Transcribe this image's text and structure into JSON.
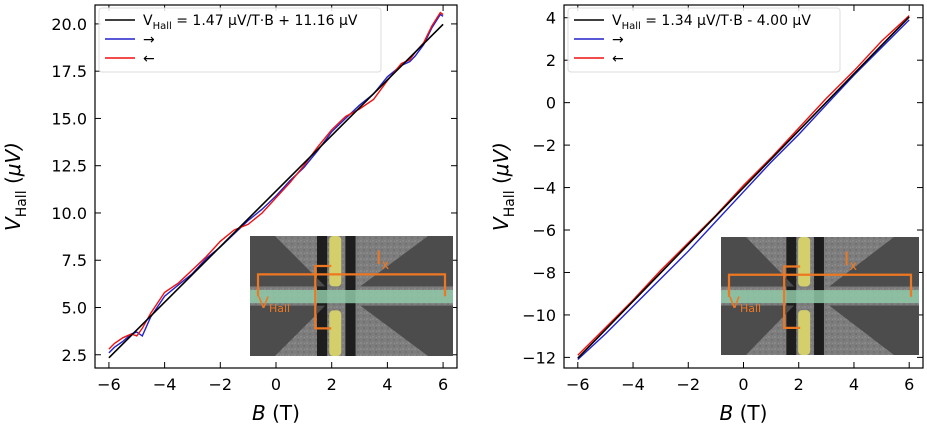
{
  "chart_data": [
    {
      "type": "line",
      "xlabel": "B (T)",
      "ylabel": "V_Hall (μV)",
      "xlim": [
        -6.5,
        6.5
      ],
      "ylim": [
        1.8,
        21.0
      ],
      "xticks": [
        -6,
        -4,
        -2,
        0,
        2,
        4,
        6
      ],
      "yticks": [
        2.5,
        5.0,
        7.5,
        10.0,
        12.5,
        15.0,
        17.5,
        20.0
      ],
      "ytick_labels": [
        "2.5",
        "5.0",
        "7.5",
        "10.0",
        "12.5",
        "15.0",
        "17.5",
        "20.0"
      ],
      "legend_position": "top-left",
      "fit": {
        "slope": 1.47,
        "intercept": 11.16
      },
      "legend": [
        {
          "label": "V_Hall = 1.47 μV/T·B + 11.16 μV",
          "color": "#000000"
        },
        {
          "label": "→",
          "color": "#2222cc"
        },
        {
          "label": "←",
          "color": "#ee1111"
        }
      ],
      "series": [
        {
          "name": "V_Hall = 1.47 μV/T·B + 11.16 μV",
          "color": "#000000",
          "x": [
            -6,
            6
          ],
          "y": [
            2.34,
            19.98
          ]
        },
        {
          "name": "→",
          "color": "#2222cc",
          "x": [
            -6,
            -5.8,
            -5.5,
            -5.2,
            -5.0,
            -4.8,
            -4.5,
            -4.0,
            -3.5,
            -3.0,
            -2.5,
            -2.0,
            -1.5,
            -1.0,
            -0.5,
            0,
            0.5,
            1.0,
            1.5,
            2.0,
            2.5,
            3.0,
            3.5,
            4.0,
            4.5,
            4.8,
            5.0,
            5.3,
            5.6,
            5.9,
            6.0
          ],
          "y": [
            2.6,
            2.9,
            3.2,
            3.6,
            3.7,
            3.5,
            4.5,
            5.6,
            6.2,
            6.8,
            7.6,
            8.2,
            8.9,
            9.6,
            10.2,
            10.9,
            11.7,
            12.4,
            13.3,
            14.3,
            15.0,
            15.7,
            16.3,
            17.2,
            17.8,
            18.0,
            18.3,
            18.9,
            19.8,
            20.5,
            20.4
          ]
        },
        {
          "name": "←",
          "color": "#ee1111",
          "x": [
            -6,
            -5.8,
            -5.5,
            -5.2,
            -5.0,
            -4.8,
            -4.5,
            -4.0,
            -3.5,
            -3.0,
            -2.5,
            -2.0,
            -1.5,
            -1.0,
            -0.5,
            0,
            0.5,
            1.0,
            1.5,
            2.0,
            2.5,
            3.0,
            3.5,
            4.0,
            4.5,
            4.8,
            5.0,
            5.3,
            5.6,
            5.9,
            6.0
          ],
          "y": [
            2.8,
            3.1,
            3.4,
            3.6,
            3.5,
            3.9,
            4.7,
            5.8,
            6.3,
            7.0,
            7.7,
            8.5,
            9.1,
            9.4,
            10.0,
            10.8,
            11.6,
            12.5,
            13.5,
            14.4,
            15.1,
            15.5,
            16.0,
            17.0,
            17.9,
            18.1,
            18.5,
            19.0,
            19.9,
            20.6,
            20.5
          ]
        }
      ],
      "inset": {
        "current_label": "I",
        "current_sub": "x",
        "voltage_label": "V",
        "voltage_sub": "Hall"
      }
    },
    {
      "type": "line",
      "xlabel": "B (T)",
      "ylabel": "V_Hall (μV)",
      "xlim": [
        -6.5,
        6.5
      ],
      "ylim": [
        -12.5,
        4.6
      ],
      "xticks": [
        -6,
        -4,
        -2,
        0,
        2,
        4,
        6
      ],
      "yticks": [
        -12,
        -10,
        -8,
        -6,
        -4,
        -2,
        0,
        2,
        4
      ],
      "ytick_labels": [
        "−12",
        "−10",
        "−8",
        "−6",
        "−4",
        "−2",
        "0",
        "2",
        "4"
      ],
      "legend_position": "top-left",
      "fit": {
        "slope": 1.34,
        "intercept": -4.0
      },
      "legend": [
        {
          "label": "V_Hall = 1.34 μV/T·B - 4.00 μV",
          "color": "#000000"
        },
        {
          "label": "→",
          "color": "#2222cc"
        },
        {
          "label": "←",
          "color": "#ee1111"
        }
      ],
      "series": [
        {
          "name": "V_Hall = 1.34 μV/T·B - 4.00 μV",
          "color": "#000000",
          "x": [
            -6,
            6
          ],
          "y": [
            -12.04,
            4.04
          ]
        },
        {
          "name": "→",
          "color": "#2222cc",
          "x": [
            -6,
            -5,
            -4,
            -3,
            -2,
            -1,
            0,
            1,
            2,
            3,
            4,
            5,
            6
          ],
          "y": [
            -12.1,
            -10.9,
            -9.6,
            -8.3,
            -7.0,
            -5.6,
            -4.2,
            -2.8,
            -1.5,
            -0.1,
            1.3,
            2.6,
            3.9
          ]
        },
        {
          "name": "←",
          "color": "#ee1111",
          "x": [
            -6,
            -5,
            -4,
            -3,
            -2,
            -1,
            0,
            1,
            2,
            3,
            4,
            5,
            6
          ],
          "y": [
            -11.9,
            -10.6,
            -9.3,
            -7.9,
            -6.6,
            -5.3,
            -3.9,
            -2.6,
            -1.2,
            0.2,
            1.5,
            2.9,
            4.1
          ]
        }
      ],
      "inset": {
        "current_label": "I",
        "current_sub": "x",
        "voltage_label": "V",
        "voltage_sub": "Hall"
      }
    }
  ]
}
